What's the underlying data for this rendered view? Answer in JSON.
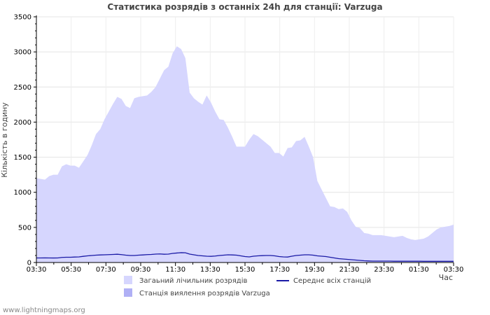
{
  "chart_data": {
    "type": "area",
    "title": "Статистика розрядів з останніх 24h для станції: Varzuga",
    "ylabel": "Кількість в годину",
    "xlabel": "Час",
    "ylim": [
      0,
      3500
    ],
    "yticks": [
      0,
      500,
      1000,
      1500,
      2000,
      2500,
      3000,
      3500
    ],
    "xtick_labels": [
      "03:30",
      "05:30",
      "07:30",
      "09:30",
      "11:30",
      "13:30",
      "15:30",
      "17:30",
      "19:30",
      "21:30",
      "23:30",
      "01:30",
      "03:30"
    ],
    "points_per_hour": 4,
    "series": [
      {
        "name": "Загаьний лічильник розрядів",
        "kind": "area",
        "color": "#d6d6fe",
        "values": [
          1200,
          1190,
          1180,
          1230,
          1250,
          1250,
          1370,
          1400,
          1380,
          1380,
          1350,
          1440,
          1530,
          1670,
          1830,
          1900,
          2040,
          2150,
          2260,
          2360,
          2330,
          2230,
          2200,
          2340,
          2360,
          2370,
          2380,
          2430,
          2500,
          2620,
          2740,
          2790,
          2980,
          3080,
          3040,
          2910,
          2420,
          2340,
          2290,
          2250,
          2380,
          2280,
          2150,
          2040,
          2030,
          1920,
          1790,
          1650,
          1650,
          1650,
          1750,
          1830,
          1800,
          1750,
          1700,
          1650,
          1560,
          1560,
          1510,
          1630,
          1640,
          1730,
          1740,
          1790,
          1650,
          1500,
          1160,
          1040,
          920,
          800,
          790,
          760,
          770,
          720,
          600,
          510,
          490,
          420,
          410,
          390,
          390,
          390,
          380,
          370,
          360,
          370,
          380,
          350,
          330,
          320,
          330,
          340,
          370,
          420,
          470,
          500,
          510,
          520,
          540
        ]
      },
      {
        "name": "Станція виялення розрядів Varzuga",
        "kind": "area",
        "color": "#b0b0f5",
        "values": [
          0,
          0,
          0,
          0,
          0,
          0,
          0,
          0,
          0,
          0,
          0,
          0,
          0,
          0,
          0,
          0,
          0,
          0,
          0,
          0,
          0,
          0,
          0,
          0,
          0,
          0,
          0,
          0,
          0,
          0,
          0,
          0,
          0,
          0,
          0,
          0,
          0,
          0,
          0,
          0,
          0,
          0,
          0,
          0,
          0,
          0,
          0,
          0,
          0,
          0,
          0,
          0,
          0,
          0,
          0,
          0,
          0,
          0,
          0,
          0,
          0,
          0,
          0,
          0,
          0,
          0,
          0,
          0,
          0,
          0,
          0,
          0,
          0,
          0,
          0,
          0,
          0,
          0,
          0,
          0,
          0,
          0,
          0,
          0,
          0,
          0,
          0,
          0,
          0,
          0,
          0,
          0,
          0,
          0,
          0,
          0,
          0,
          0,
          0
        ]
      },
      {
        "name": "Середнє всіх станцій",
        "kind": "line",
        "color": "#1a1aa6",
        "values": [
          65,
          65,
          66,
          65,
          64,
          65,
          72,
          75,
          75,
          78,
          80,
          88,
          95,
          100,
          105,
          108,
          110,
          112,
          115,
          118,
          112,
          105,
          100,
          100,
          105,
          108,
          112,
          115,
          120,
          122,
          118,
          120,
          130,
          135,
          140,
          138,
          120,
          110,
          100,
          95,
          90,
          88,
          92,
          100,
          105,
          110,
          108,
          105,
          95,
          85,
          80,
          90,
          95,
          98,
          100,
          100,
          95,
          85,
          80,
          78,
          90,
          100,
          105,
          110,
          110,
          105,
          95,
          90,
          85,
          75,
          65,
          55,
          50,
          45,
          40,
          35,
          30,
          25,
          22,
          20,
          20,
          20,
          20,
          20,
          18,
          18,
          18,
          18,
          18,
          18,
          18,
          17,
          17,
          17,
          17,
          17,
          17,
          17,
          17
        ]
      }
    ],
    "legend": [
      {
        "name": "Загаьний лічильник розрядів",
        "swatch": "box",
        "color": "#d6d6fe"
      },
      {
        "name": "Середнє всіх станцій",
        "swatch": "line",
        "color": "#1a1aa6"
      },
      {
        "name": "Станція виялення розрядів Varzuga",
        "swatch": "box",
        "color": "#b0b0f5"
      }
    ]
  },
  "footer": "www.lightningmaps.org"
}
